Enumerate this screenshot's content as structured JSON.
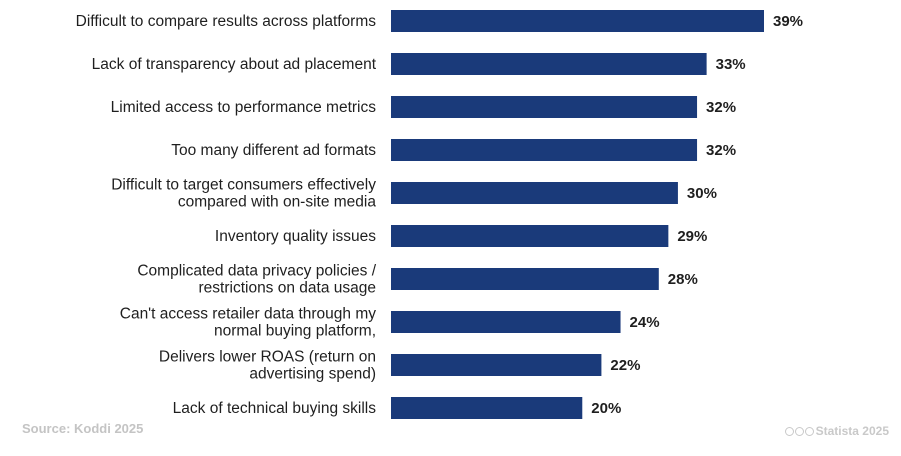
{
  "chart_data": {
    "type": "bar",
    "orientation": "horizontal",
    "categories": [
      [
        "Difficult to compare results across platforms"
      ],
      [
        "Lack of transparency about ad placement"
      ],
      [
        "Limited access to performance metrics"
      ],
      [
        "Too many different ad formats"
      ],
      [
        "Difficult to target consumers effectively",
        "compared with on-site media"
      ],
      [
        "Inventory quality issues"
      ],
      [
        "Complicated data privacy policies /",
        "restrictions on data usage"
      ],
      [
        "Can't access retailer data through my",
        "normal buying platform,"
      ],
      [
        "Delivers lower ROAS (return on",
        "advertising spend)"
      ],
      [
        "Lack of technical buying skills"
      ]
    ],
    "values": [
      39,
      33,
      32,
      32,
      30,
      29,
      28,
      24,
      22,
      20
    ],
    "value_labels": [
      "39%",
      "33%",
      "32%",
      "32%",
      "30%",
      "29%",
      "28%",
      "24%",
      "22%",
      "20%"
    ],
    "unit": "%",
    "xlim": [
      0,
      39
    ],
    "grid": false,
    "bar_color": "#1a3a7a"
  },
  "footer": {
    "source": "Source: Koddi 2025",
    "credit": "Statista 2025",
    "credit_icon": "creative-commons-icon"
  }
}
